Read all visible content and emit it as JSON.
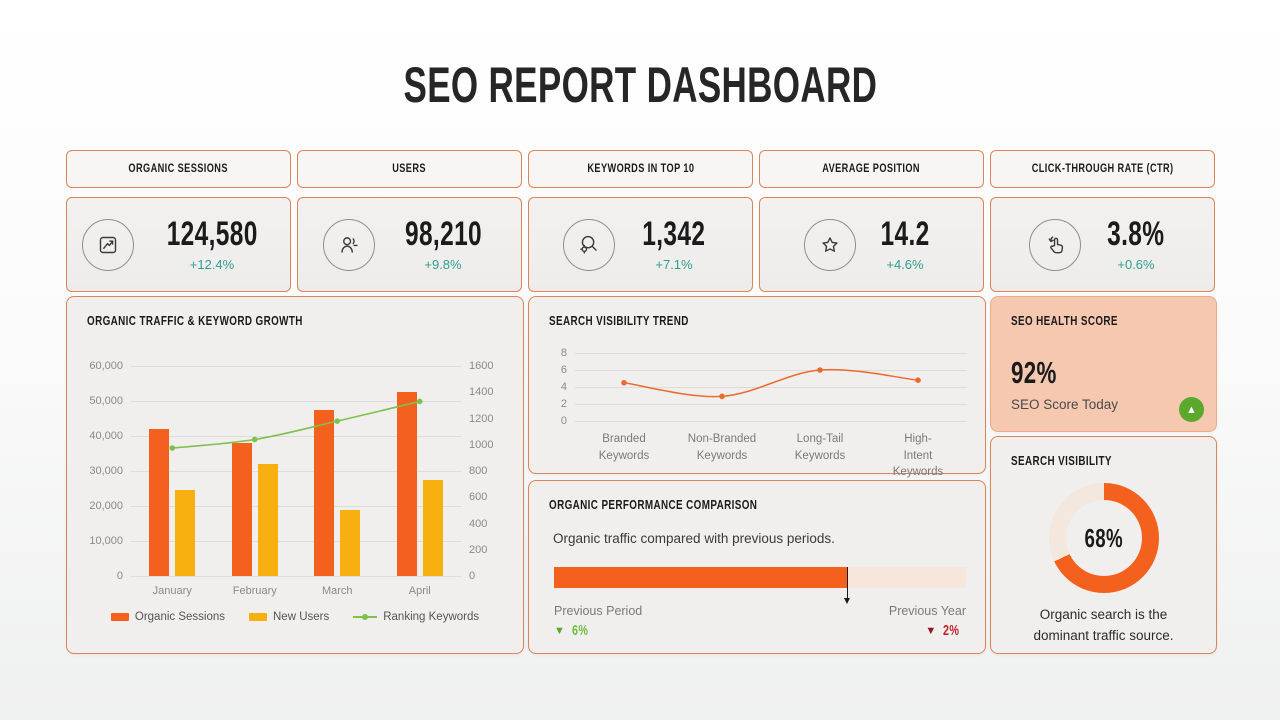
{
  "page": {
    "title": "SEO REPORT DASHBOARD"
  },
  "colors": {
    "accent_orange": "#F4611E",
    "accent_yellow": "#F7B010",
    "line_green": "#7EC14C",
    "trend_orange": "#ED6A2E",
    "change_teal": "#2FA08C",
    "card_border_orange": "#DE8357",
    "salmon_bg": "#F6C8B0",
    "donut_track": "#F3E7DE",
    "progress_track": "#F6E6DC",
    "badge_green": "#5BA82D",
    "down_green": "#6DBE3C",
    "down_red": "#B2232A"
  },
  "kpis": [
    {
      "label": "ORGANIC SESSIONS",
      "value": "124,580",
      "change": "+12.4%",
      "icon": "chart-increase-icon"
    },
    {
      "label": "USERS",
      "value": "98,210",
      "change": "+9.8%",
      "icon": "user-icon"
    },
    {
      "label": "KEYWORDS IN TOP 10",
      "value": "1,342",
      "change": "+7.1%",
      "icon": "keyword-search-icon"
    },
    {
      "label": "AVERAGE POSITION",
      "value": "14.2",
      "change": "+4.6%",
      "icon": "star-icon"
    },
    {
      "label": "CLICK-THROUGH RATE (CTR)",
      "value": "3.8%",
      "change": "+0.6%",
      "icon": "tap-click-icon"
    }
  ],
  "cards": {
    "traffic": {
      "title": "ORGANIC TRAFFIC & KEYWORD GROWTH"
    },
    "trend": {
      "title": "SEARCH VISIBILITY TREND"
    },
    "comparison": {
      "title": "ORGANIC PERFORMANCE COMPARISON",
      "subtitle": "Organic traffic compared with previous periods.",
      "previous_period_label": "Previous Period",
      "previous_period_change": "6%",
      "previous_year_label": "Previous Year",
      "previous_year_change": "2%"
    },
    "health": {
      "title": "SEO HEALTH SCORE",
      "score": "92%",
      "caption": "SEO Score Today"
    },
    "visibility": {
      "title": "SEARCH VISIBILITY",
      "percent_label": "68%",
      "caption_line1": "Organic search is the",
      "caption_line2": "dominant traffic source."
    }
  },
  "chart_data": [
    {
      "id": "organic_traffic_keyword_growth",
      "type": "bar",
      "title": "Organic Traffic & Keyword Growth",
      "categories": [
        "January",
        "February",
        "March",
        "April"
      ],
      "series": [
        {
          "name": "Organic Sessions",
          "type": "bar",
          "axis": "left",
          "color": "#F4611E",
          "values": [
            42000,
            38000,
            47500,
            52500
          ]
        },
        {
          "name": "New Users",
          "type": "bar",
          "axis": "left",
          "color": "#F7B010",
          "values": [
            24500,
            32000,
            19000,
            27500
          ]
        },
        {
          "name": "Ranking Keywords",
          "type": "line",
          "axis": "right",
          "color": "#7EC14C",
          "values": [
            975,
            1040,
            1180,
            1330
          ]
        }
      ],
      "left_axis": {
        "range": [
          0,
          60000
        ],
        "ticks": [
          "60,000",
          "50,000",
          "40,000",
          "30,000",
          "20,000",
          "10,000",
          "0"
        ]
      },
      "right_axis": {
        "range": [
          0,
          1600
        ],
        "ticks": [
          "1600",
          "1400",
          "1200",
          "1000",
          "800",
          "600",
          "400",
          "200",
          "0"
        ]
      },
      "grid": true,
      "legend_position": "bottom"
    },
    {
      "id": "search_visibility_trend",
      "type": "line",
      "title": "Search Visibility Trend",
      "categories": [
        "Branded Keywords",
        "Non-Branded Keywords",
        "Long-Tail Keywords",
        "High-Intent Keywords"
      ],
      "category_lines": [
        [
          "Branded",
          "Keywords"
        ],
        [
          "Non-Branded",
          "Keywords"
        ],
        [
          "Long-Tail",
          "Keywords"
        ],
        [
          "High-Intent",
          "Keywords"
        ]
      ],
      "values": [
        4.5,
        2.9,
        6,
        4.8
      ],
      "ylim": [
        0,
        8
      ],
      "yticks": [
        "8",
        "6",
        "4",
        "2",
        "0"
      ],
      "color": "#ED6A2E",
      "grid": true
    },
    {
      "id": "organic_performance_comparison",
      "type": "progress",
      "percent": 71,
      "fill_color": "#F4611E",
      "track_color": "#F6E6DC"
    },
    {
      "id": "search_visibility_share",
      "type": "donut",
      "percent": 68,
      "label": "68%",
      "color": "#F4611E",
      "track_color": "#F3E7DE"
    }
  ]
}
